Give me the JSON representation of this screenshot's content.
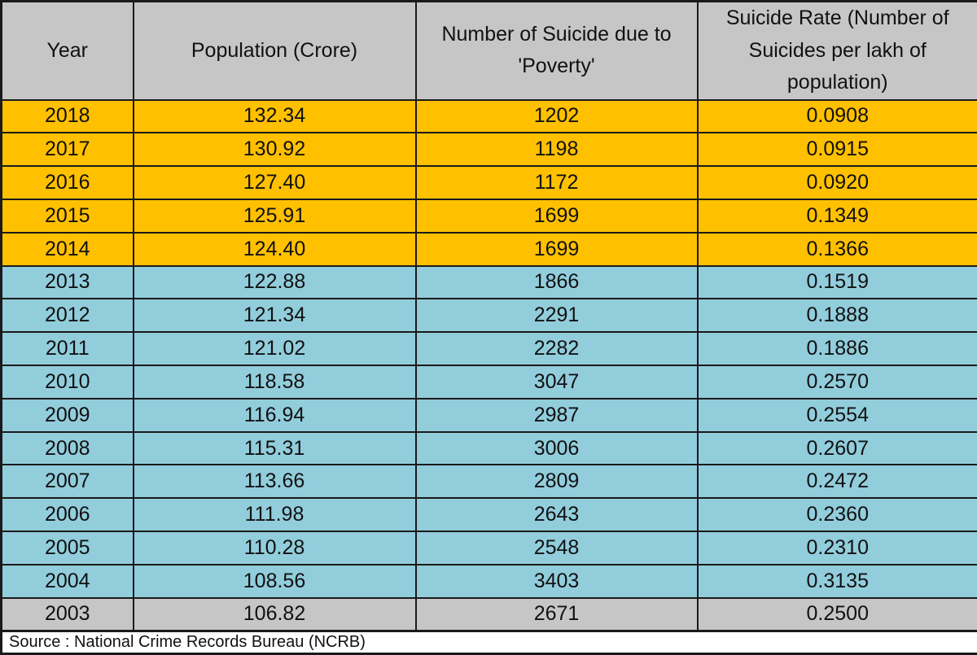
{
  "chart_data": {
    "type": "table",
    "columns": [
      "Year",
      "Population (Crore)",
      "Number of Suicide due to 'Poverty'",
      "Suicide Rate (Number of Suicides per lakh of population)"
    ],
    "rows": [
      {
        "year": "2018",
        "population": "132.34",
        "suicides": "1202",
        "rate": "0.0908",
        "group": "orange"
      },
      {
        "year": "2017",
        "population": "130.92",
        "suicides": "1198",
        "rate": "0.0915",
        "group": "orange"
      },
      {
        "year": "2016",
        "population": "127.40",
        "suicides": "1172",
        "rate": "0.0920",
        "group": "orange"
      },
      {
        "year": "2015",
        "population": "125.91",
        "suicides": "1699",
        "rate": "0.1349",
        "group": "orange"
      },
      {
        "year": "2014",
        "population": "124.40",
        "suicides": "1699",
        "rate": "0.1366",
        "group": "orange"
      },
      {
        "year": "2013",
        "population": "122.88",
        "suicides": "1866",
        "rate": "0.1519",
        "group": "blue"
      },
      {
        "year": "2012",
        "population": "121.34",
        "suicides": "2291",
        "rate": "0.1888",
        "group": "blue"
      },
      {
        "year": "2011",
        "population": "121.02",
        "suicides": "2282",
        "rate": "0.1886",
        "group": "blue"
      },
      {
        "year": "2010",
        "population": "118.58",
        "suicides": "3047",
        "rate": "0.2570",
        "group": "blue"
      },
      {
        "year": "2009",
        "population": "116.94",
        "suicides": "2987",
        "rate": "0.2554",
        "group": "blue"
      },
      {
        "year": "2008",
        "population": "115.31",
        "suicides": "3006",
        "rate": "0.2607",
        "group": "blue"
      },
      {
        "year": "2007",
        "population": "113.66",
        "suicides": "2809",
        "rate": "0.2472",
        "group": "blue"
      },
      {
        "year": "2006",
        "population": "111.98",
        "suicides": "2643",
        "rate": "0.2360",
        "group": "blue"
      },
      {
        "year": "2005",
        "population": "110.28",
        "suicides": "2548",
        "rate": "0.2310",
        "group": "blue"
      },
      {
        "year": "2004",
        "population": "108.56",
        "suicides": "3403",
        "rate": "0.3135",
        "group": "blue"
      },
      {
        "year": "2003",
        "population": "106.82",
        "suicides": "2671",
        "rate": "0.2500",
        "group": "gray"
      }
    ],
    "source": "Source : National Crime Records Bureau (NCRB)",
    "layout_hints": {
      "highlighted_group_years_orange": [
        "2018",
        "2017",
        "2016",
        "2015",
        "2014"
      ],
      "highlighted_group_years_blue": [
        "2013",
        "2012",
        "2011",
        "2010",
        "2009",
        "2008",
        "2007",
        "2006",
        "2005",
        "2004"
      ],
      "highlighted_group_years_gray": [
        "2003"
      ]
    }
  },
  "colors": {
    "highlight_orange": "#FFC000",
    "highlight_blue": "#92CDDC",
    "header_gray": "#C6C6C6",
    "border": "#1a1a1a"
  }
}
